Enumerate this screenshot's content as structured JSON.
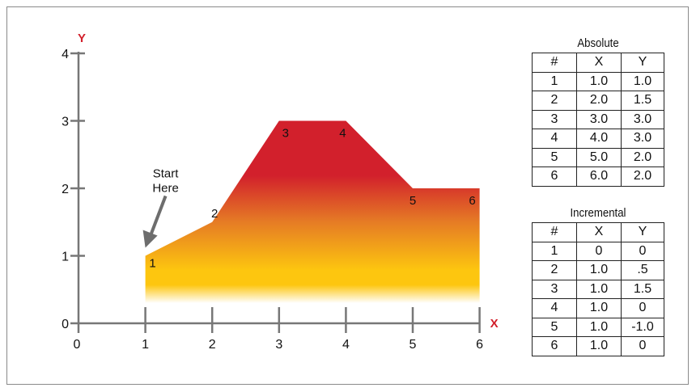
{
  "chart_data": {
    "type": "area",
    "x_axis_label": "X",
    "y_axis_label": "Y",
    "xlim": [
      0,
      6
    ],
    "ylim": [
      0,
      4
    ],
    "x_ticks": [
      "0",
      "1",
      "2",
      "3",
      "4",
      "5",
      "6"
    ],
    "y_ticks": [
      "0",
      "1",
      "2",
      "3",
      "4"
    ],
    "grid": false,
    "points": [
      {
        "label": "1",
        "x": 1.0,
        "y": 1.0
      },
      {
        "label": "2",
        "x": 2.0,
        "y": 1.5
      },
      {
        "label": "3",
        "x": 3.0,
        "y": 3.0
      },
      {
        "label": "4",
        "x": 4.0,
        "y": 3.0
      },
      {
        "label": "5",
        "x": 5.0,
        "y": 2.0
      },
      {
        "label": "6",
        "x": 6.0,
        "y": 2.0
      }
    ],
    "annotation": {
      "line1": "Start",
      "line2": "Here"
    },
    "colors": {
      "axis_label": "#d21f2b",
      "axis": "#777777",
      "fill_top": "#d2202c",
      "fill_mid": "#e57a25",
      "fill_low": "#fdc60f",
      "arrow": "#6d6d6d"
    }
  },
  "tables": [
    {
      "title": "Absolute",
      "headers": [
        "#",
        "X",
        "Y"
      ],
      "rows": [
        [
          "1",
          "1.0",
          "1.0"
        ],
        [
          "2",
          "2.0",
          "1.5"
        ],
        [
          "3",
          "3.0",
          "3.0"
        ],
        [
          "4",
          "4.0",
          "3.0"
        ],
        [
          "5",
          "5.0",
          "2.0"
        ],
        [
          "6",
          "6.0",
          "2.0"
        ]
      ]
    },
    {
      "title": "Incremental",
      "headers": [
        "#",
        "X",
        "Y"
      ],
      "rows": [
        [
          "1",
          "0",
          "0"
        ],
        [
          "2",
          "1.0",
          ".5"
        ],
        [
          "3",
          "1.0",
          "1.5"
        ],
        [
          "4",
          "1.0",
          "0"
        ],
        [
          "5",
          "1.0",
          "-1.0"
        ],
        [
          "6",
          "1.0",
          "0"
        ]
      ]
    }
  ]
}
